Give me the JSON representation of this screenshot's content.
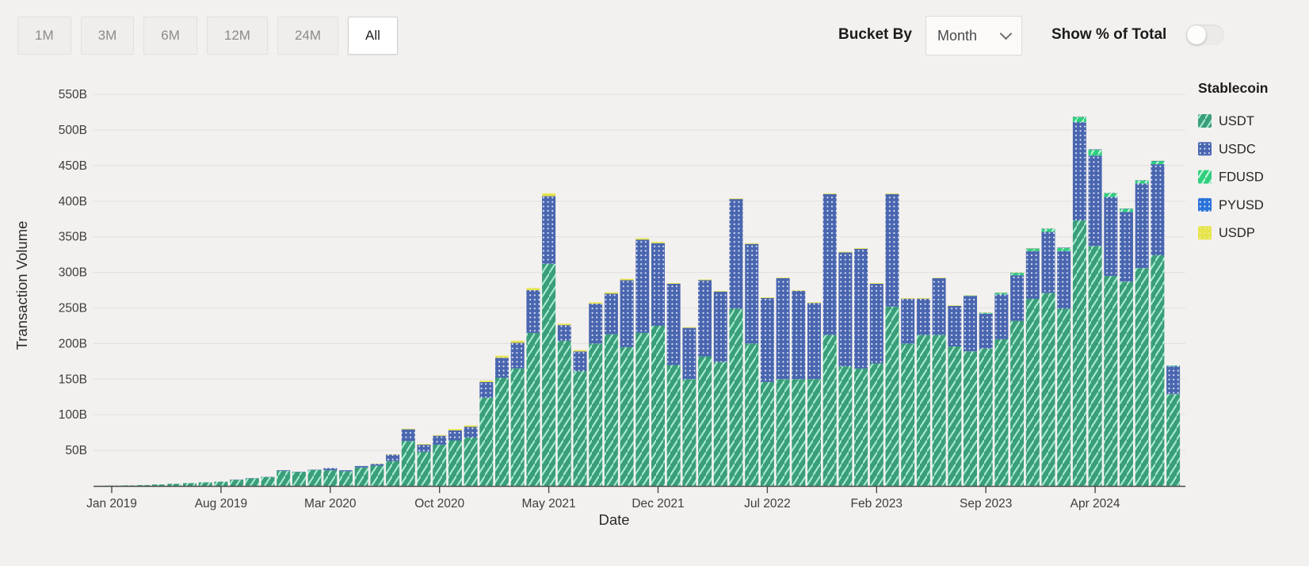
{
  "toolbar": {
    "ranges": [
      {
        "label": "1M",
        "selected": false
      },
      {
        "label": "3M",
        "selected": false
      },
      {
        "label": "6M",
        "selected": false
      },
      {
        "label": "12M",
        "selected": false
      },
      {
        "label": "24M",
        "selected": false
      },
      {
        "label": "All",
        "selected": true
      }
    ],
    "bucket_by_label": "Bucket By",
    "bucket_value": "Month",
    "show_pct_label": "Show % of Total",
    "toggle_on": false
  },
  "legend": {
    "title": "Stablecoin",
    "items": [
      {
        "label": "USDT",
        "key": "usdt",
        "color": "#3a9e7a",
        "pattern": "stripes"
      },
      {
        "label": "USDC",
        "key": "usdc",
        "color": "#4a66b0",
        "pattern": "dots"
      },
      {
        "label": "FDUSD",
        "key": "fdusd",
        "color": "#2fcf7c",
        "pattern": "stripes"
      },
      {
        "label": "PYUSD",
        "key": "pyusd",
        "color": "#2b72d9",
        "pattern": "dots"
      },
      {
        "label": "USDP",
        "key": "usdp",
        "color": "#e6e44c",
        "pattern": "faint-dots"
      }
    ]
  },
  "chart_data": {
    "type": "bar",
    "stacked": true,
    "xlabel": "Date",
    "ylabel": "Transaction Volume",
    "unit": "B",
    "ylim": [
      0,
      570
    ],
    "grid": true,
    "legend_position": "right",
    "y_tick_values": [
      50,
      100,
      150,
      200,
      250,
      300,
      350,
      400,
      450,
      500,
      550
    ],
    "x_tick_indices": [
      0,
      7,
      14,
      21,
      28,
      35,
      42,
      49,
      56,
      63
    ],
    "categories": [
      "Jan 2019",
      "Feb 2019",
      "Mar 2019",
      "Apr 2019",
      "May 2019",
      "Jun 2019",
      "Jul 2019",
      "Aug 2019",
      "Sep 2019",
      "Oct 2019",
      "Nov 2019",
      "Dec 2019",
      "Jan 2020",
      "Feb 2020",
      "Mar 2020",
      "Apr 2020",
      "May 2020",
      "Jun 2020",
      "Jul 2020",
      "Aug 2020",
      "Sep 2020",
      "Oct 2020",
      "Nov 2020",
      "Dec 2020",
      "Jan 2021",
      "Feb 2021",
      "Mar 2021",
      "Apr 2021",
      "May 2021",
      "Jun 2021",
      "Jul 2021",
      "Aug 2021",
      "Sep 2021",
      "Oct 2021",
      "Nov 2021",
      "Dec 2021",
      "Jan 2022",
      "Feb 2022",
      "Mar 2022",
      "Apr 2022",
      "May 2022",
      "Jun 2022",
      "Jul 2022",
      "Aug 2022",
      "Sep 2022",
      "Oct 2022",
      "Nov 2022",
      "Dec 2022",
      "Jan 2023",
      "Feb 2023",
      "Mar 2023",
      "Apr 2023",
      "May 2023",
      "Jun 2023",
      "Jul 2023",
      "Aug 2023",
      "Sep 2023",
      "Oct 2023",
      "Nov 2023",
      "Dec 2023",
      "Jan 2024",
      "Feb 2024",
      "Mar 2024",
      "Apr 2024",
      "May 2024",
      "Jun 2024",
      "Jul 2024",
      "Aug 2024",
      "Sep 2024"
    ],
    "series": [
      {
        "name": "USDT",
        "key": "usdt",
        "values": [
          0.5,
          0.8,
          1.2,
          2,
          3,
          4,
          5,
          6,
          8.7,
          10.5,
          12.5,
          21,
          19.5,
          22.5,
          22,
          20.5,
          26,
          28.5,
          35,
          63,
          48,
          58,
          64,
          68,
          124,
          152,
          165,
          215,
          312,
          204,
          161,
          200,
          213,
          195,
          215,
          225,
          170,
          150,
          182,
          174,
          249,
          200,
          146,
          150,
          150,
          150,
          212,
          168,
          165,
          172,
          252,
          200,
          212,
          212,
          196,
          189,
          193,
          206,
          232,
          263,
          271,
          249,
          373,
          337,
          295,
          287,
          306,
          324,
          129
        ]
      },
      {
        "name": "USDC",
        "key": "usdc",
        "values": [
          0,
          0,
          0,
          0,
          0,
          0,
          0,
          0,
          0.3,
          0.5,
          0.5,
          1,
          0.5,
          0.5,
          3,
          1.5,
          2,
          2.5,
          9,
          16.5,
          10,
          12.5,
          14,
          15,
          22,
          28,
          36,
          60,
          95,
          22,
          28,
          56,
          57,
          94,
          131,
          116,
          114,
          72,
          107,
          99,
          154,
          140,
          118,
          142,
          124,
          107,
          198,
          160,
          168,
          112,
          158,
          63,
          51,
          80,
          57,
          78,
          49,
          63,
          64,
          67,
          86,
          81,
          138,
          127,
          111,
          98,
          119,
          128,
          39
        ]
      },
      {
        "name": "FDUSD",
        "key": "fdusd",
        "values": [
          0,
          0,
          0,
          0,
          0,
          0,
          0,
          0,
          0,
          0,
          0,
          0,
          0,
          0,
          0,
          0,
          0,
          0,
          0,
          0,
          0,
          0,
          0,
          0,
          0,
          0,
          0,
          0,
          0,
          0,
          0,
          0,
          0,
          0,
          0,
          0,
          0,
          0,
          0,
          0,
          0,
          0,
          0,
          0,
          0,
          0,
          0,
          0,
          0,
          0,
          0,
          0,
          0,
          0,
          0,
          0.5,
          1,
          2,
          3,
          3,
          4,
          4,
          7,
          8,
          5,
          4,
          4,
          4,
          1
        ]
      },
      {
        "name": "PYUSD",
        "key": "pyusd",
        "values": [
          0,
          0,
          0,
          0,
          0,
          0,
          0,
          0,
          0,
          0,
          0,
          0,
          0,
          0,
          0,
          0,
          0,
          0,
          0,
          0,
          0,
          0,
          0,
          0,
          0,
          0,
          0,
          0,
          0,
          0,
          0,
          0,
          0,
          0,
          0,
          0,
          0,
          0,
          0,
          0,
          0,
          0,
          0,
          0,
          0,
          0,
          0,
          0,
          0,
          0,
          0,
          0,
          0,
          0,
          0,
          0.2,
          0.3,
          0.4,
          0.5,
          0.5,
          0.7,
          0.7,
          0.7,
          0.7,
          0.7,
          0.7,
          0.7,
          0.7,
          0.3
        ]
      },
      {
        "name": "USDP",
        "key": "usdp",
        "values": [
          0,
          0,
          0,
          0,
          0,
          0,
          0,
          0,
          0,
          0,
          0,
          0,
          0,
          0,
          0,
          0,
          0,
          0.5,
          0.5,
          1,
          1,
          1,
          2,
          2,
          2,
          3,
          3,
          3,
          4,
          2,
          2,
          2,
          2,
          2,
          2,
          2,
          1,
          1,
          1,
          1,
          1,
          1,
          1,
          1,
          1,
          1,
          1,
          1,
          1,
          1,
          1,
          1,
          1,
          0.8,
          0.8,
          0.5,
          0.5,
          0.5,
          0.5,
          0.5,
          0.3,
          0.3,
          0.3,
          0.3,
          0.3,
          0.3,
          0.3,
          0.3,
          0.2
        ]
      }
    ]
  }
}
